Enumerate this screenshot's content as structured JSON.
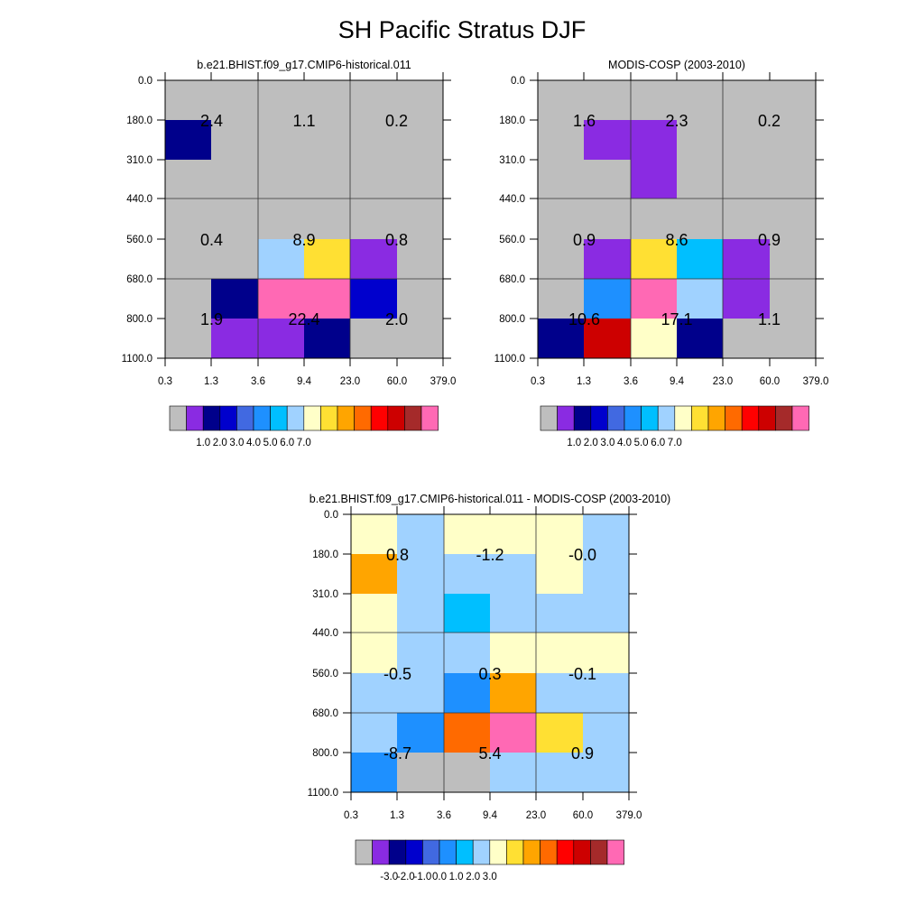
{
  "title": "SH Pacific Stratus DJF",
  "colors": {
    "palette": [
      "#bebebe",
      "#8a2be2",
      "#00008b",
      "#0000cd",
      "#4169e1",
      "#1e90ff",
      "#00bfff",
      "#a0d2ff",
      "#ffffc8",
      "#ffe033",
      "#ffa500",
      "#ff6a00",
      "#ff0000",
      "#cd0000",
      "#a52a2a",
      "#ff69b4"
    ],
    "frame": "#000000"
  },
  "chart_data": [
    {
      "type": "heatmap",
      "title": "b.e21.BHIST.f09_g17.CMIP6-historical.011",
      "x_tick_labels": [
        "0.3",
        "1.3",
        "3.6",
        "9.4",
        "23.0",
        "60.0",
        "379.0"
      ],
      "y_tick_labels": [
        "0.0",
        "180.0",
        "310.0",
        "440.0",
        "560.0",
        "680.0",
        "800.0",
        "1100.0"
      ],
      "cells": [
        [
          0,
          0,
          0,
          0,
          0,
          0
        ],
        [
          2,
          0,
          0,
          0,
          0,
          0
        ],
        [
          0,
          0,
          0,
          0,
          0,
          0
        ],
        [
          0,
          0,
          0,
          0,
          0,
          0
        ],
        [
          0,
          0,
          7,
          9,
          1,
          0
        ],
        [
          0,
          2,
          15,
          15,
          3,
          0
        ],
        [
          0,
          1,
          1,
          2,
          0,
          0
        ]
      ],
      "block_values": [
        {
          "col": 0,
          "row": 0,
          "label": "2.4"
        },
        {
          "col": 1,
          "row": 0,
          "label": "1.1"
        },
        {
          "col": 2,
          "row": 0,
          "label": "0.2"
        },
        {
          "col": 0,
          "row": 1,
          "label": "0.4"
        },
        {
          "col": 1,
          "row": 1,
          "label": "8.9"
        },
        {
          "col": 2,
          "row": 1,
          "label": "0.8"
        },
        {
          "col": 0,
          "row": 2,
          "label": "1.9"
        },
        {
          "col": 1,
          "row": 2,
          "label": "22.4"
        },
        {
          "col": 2,
          "row": 2,
          "label": "2.0"
        }
      ],
      "colorbar_labels": [
        "1.0",
        "2.0",
        "3.0",
        "4.0",
        "5.0",
        "6.0",
        "7.0"
      ]
    },
    {
      "type": "heatmap",
      "title": "MODIS-COSP (2003-2010)",
      "x_tick_labels": [
        "0.3",
        "1.3",
        "3.6",
        "9.4",
        "23.0",
        "60.0",
        "379.0"
      ],
      "y_tick_labels": [
        "0.0",
        "180.0",
        "310.0",
        "440.0",
        "560.0",
        "680.0",
        "800.0",
        "1100.0"
      ],
      "cells": [
        [
          0,
          0,
          0,
          0,
          0,
          0
        ],
        [
          0,
          1,
          1,
          0,
          0,
          0
        ],
        [
          0,
          0,
          1,
          0,
          0,
          0
        ],
        [
          0,
          0,
          0,
          0,
          0,
          0
        ],
        [
          0,
          1,
          9,
          6,
          1,
          0
        ],
        [
          0,
          5,
          15,
          7,
          1,
          0
        ],
        [
          2,
          13,
          8,
          2,
          0,
          0
        ]
      ],
      "block_values": [
        {
          "col": 0,
          "row": 0,
          "label": "1.6"
        },
        {
          "col": 1,
          "row": 0,
          "label": "2.3"
        },
        {
          "col": 2,
          "row": 0,
          "label": "0.2"
        },
        {
          "col": 0,
          "row": 1,
          "label": "0.9"
        },
        {
          "col": 1,
          "row": 1,
          "label": "8.6"
        },
        {
          "col": 2,
          "row": 1,
          "label": "0.9"
        },
        {
          "col": 0,
          "row": 2,
          "label": "10.6"
        },
        {
          "col": 1,
          "row": 2,
          "label": "17.1"
        },
        {
          "col": 2,
          "row": 2,
          "label": "1.1"
        }
      ],
      "colorbar_labels": [
        "1.0",
        "2.0",
        "3.0",
        "4.0",
        "5.0",
        "6.0",
        "7.0"
      ]
    },
    {
      "type": "heatmap",
      "title": "b.e21.BHIST.f09_g17.CMIP6-historical.011 - MODIS-COSP (2003-2010)",
      "x_tick_labels": [
        "0.3",
        "1.3",
        "3.6",
        "9.4",
        "23.0",
        "60.0",
        "379.0"
      ],
      "y_tick_labels": [
        "0.0",
        "180.0",
        "310.0",
        "440.0",
        "560.0",
        "680.0",
        "800.0",
        "1100.0"
      ],
      "cells": [
        [
          8,
          7,
          8,
          8,
          8,
          7
        ],
        [
          10,
          7,
          7,
          7,
          8,
          7
        ],
        [
          8,
          7,
          6,
          7,
          7,
          7
        ],
        [
          8,
          7,
          7,
          8,
          8,
          8
        ],
        [
          7,
          7,
          5,
          10,
          7,
          7
        ],
        [
          7,
          5,
          11,
          15,
          9,
          7
        ],
        [
          5,
          0,
          0,
          7,
          7,
          7
        ]
      ],
      "block_values": [
        {
          "col": 0,
          "row": 0,
          "label": "0.8"
        },
        {
          "col": 1,
          "row": 0,
          "label": "-1.2"
        },
        {
          "col": 2,
          "row": 0,
          "label": "-0.0"
        },
        {
          "col": 0,
          "row": 1,
          "label": "-0.5"
        },
        {
          "col": 1,
          "row": 1,
          "label": "0.3"
        },
        {
          "col": 2,
          "row": 1,
          "label": "-0.1"
        },
        {
          "col": 0,
          "row": 2,
          "label": "-8.7"
        },
        {
          "col": 1,
          "row": 2,
          "label": "5.4"
        },
        {
          "col": 2,
          "row": 2,
          "label": "0.9"
        }
      ],
      "colorbar_labels": [
        "-3.0",
        "-2.0",
        "-1.0",
        "0.0",
        "1.0",
        "2.0",
        "3.0"
      ]
    }
  ]
}
